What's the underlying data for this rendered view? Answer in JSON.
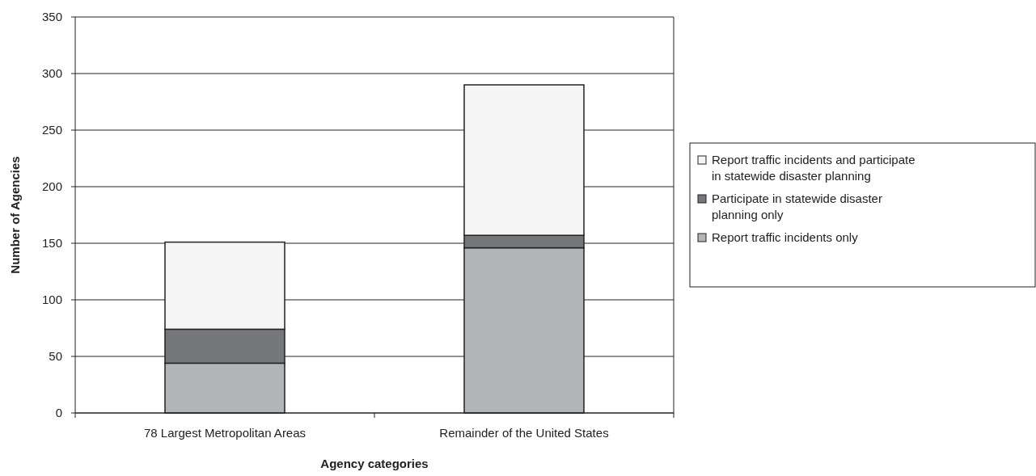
{
  "chart_data": {
    "type": "bar",
    "stacked": true,
    "xlabel": "Agency categories",
    "ylabel": "Number of Agencies",
    "categories": [
      "78 Largest Metropolitan Areas",
      "Remainder of the United States"
    ],
    "series": [
      {
        "name": "Report traffic incidents only",
        "color": "#b3b4b6",
        "values": [
          44,
          146
        ]
      },
      {
        "name": "Participate in statewide disaster planning only",
        "color": "#76777b",
        "values": [
          30,
          11
        ]
      },
      {
        "name": "Report traffic incidents and participate in statewide disaster planning",
        "color": "#f5f5f5",
        "values": [
          77,
          133
        ]
      }
    ],
    "ylim": [
      0,
      350
    ],
    "yticks": [
      0,
      50,
      100,
      150,
      200,
      250,
      300,
      350
    ],
    "grid": "y",
    "legend": "right"
  }
}
